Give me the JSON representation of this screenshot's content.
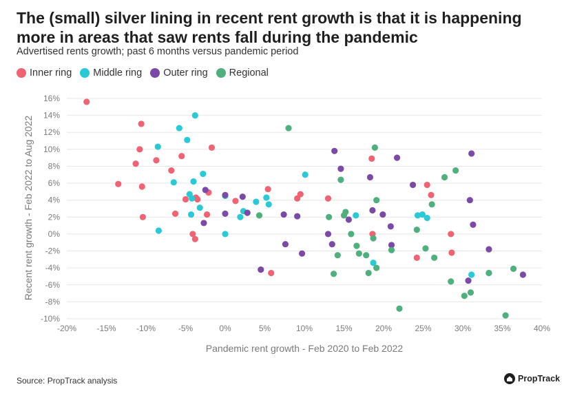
{
  "header": {
    "title": "The (small) silver lining in recent rent growth is that it is happening more in areas that saw rents fall during the pandemic",
    "subtitle": "Advertised rents growth; past 6 months versus pandemic period"
  },
  "footer": {
    "source": "Source: PropTrack analysis",
    "brand": "PropTrack"
  },
  "colors": {
    "grid": "#e6e6e6",
    "axis_text": "#7a7a7a"
  },
  "chart_data": {
    "type": "scatter",
    "xlabel": "Pandemic rent growth - Feb 2020 to Feb 2022",
    "ylabel": "Recent rent growth - Feb 2022 to Aug 2022",
    "xlim": [
      -20,
      40
    ],
    "ylim": [
      -10,
      16
    ],
    "x_ticks": [
      "-20%",
      "-15%",
      "-10%",
      "-5%",
      "0%",
      "5%",
      "10%",
      "15%",
      "20%",
      "25%",
      "30%",
      "35%",
      "40%"
    ],
    "y_ticks": [
      "-10%",
      "-8%",
      "-6%",
      "-4%",
      "-2%",
      "0%",
      "2%",
      "4%",
      "6%",
      "8%",
      "10%",
      "12%",
      "14%",
      "16%"
    ],
    "grid": "horizontal",
    "legend_position": "top-left",
    "series": [
      {
        "name": "Inner ring",
        "color": "#ef6373",
        "points": [
          [
            -17.5,
            15.6
          ],
          [
            -13.5,
            5.9
          ],
          [
            -11.3,
            8.3
          ],
          [
            -10.8,
            10.0
          ],
          [
            -10.6,
            13.0
          ],
          [
            -10.5,
            5.6
          ],
          [
            -10.4,
            2.0
          ],
          [
            -8.7,
            8.7
          ],
          [
            -6.8,
            7.5
          ],
          [
            -6.3,
            2.4
          ],
          [
            -5.5,
            9.2
          ],
          [
            -5.0,
            4.1
          ],
          [
            -4.1,
            0.0
          ],
          [
            -3.8,
            -0.6
          ],
          [
            -3.7,
            4.3
          ],
          [
            -3.5,
            4.1
          ],
          [
            -2.3,
            2.3
          ],
          [
            -2.1,
            4.9
          ],
          [
            -1.7,
            10.2
          ],
          [
            1.3,
            3.9
          ],
          [
            5.4,
            5.3
          ],
          [
            5.8,
            -4.6
          ],
          [
            9.1,
            4.2
          ],
          [
            9.5,
            4.7
          ],
          [
            13.0,
            4.2
          ],
          [
            18.5,
            8.9
          ],
          [
            18.6,
            0.0
          ],
          [
            24.2,
            -2.8
          ],
          [
            25.5,
            5.8
          ],
          [
            26.0,
            4.6
          ],
          [
            28.5,
            0.0
          ],
          [
            28.6,
            -2.2
          ]
        ]
      },
      {
        "name": "Middle ring",
        "color": "#29c9d6",
        "points": [
          [
            -8.5,
            10.3
          ],
          [
            -8.4,
            0.4
          ],
          [
            -6.5,
            6.1
          ],
          [
            -5.8,
            12.5
          ],
          [
            -4.8,
            11.1
          ],
          [
            -4.5,
            4.7
          ],
          [
            -4.3,
            2.3
          ],
          [
            -4.2,
            4.2
          ],
          [
            -4.0,
            6.2
          ],
          [
            -3.8,
            14.0
          ],
          [
            -3.2,
            3.1
          ],
          [
            -2.8,
            7.1
          ],
          [
            0.0,
            4.5
          ],
          [
            0.0,
            0.0
          ],
          [
            1.9,
            2.0
          ],
          [
            2.3,
            2.7
          ],
          [
            3.9,
            3.8
          ],
          [
            5.2,
            4.3
          ],
          [
            5.5,
            3.5
          ],
          [
            10.1,
            7.0
          ],
          [
            16.5,
            2.2
          ],
          [
            18.7,
            -3.4
          ],
          [
            24.3,
            2.2
          ],
          [
            24.9,
            2.3
          ],
          [
            25.5,
            1.9
          ],
          [
            31.1,
            -4.8
          ],
          [
            33.3,
            -4.6
          ]
        ]
      },
      {
        "name": "Outer ring",
        "color": "#7a4aa6",
        "points": [
          [
            -2.5,
            5.2
          ],
          [
            -2.7,
            1.3
          ],
          [
            0.0,
            4.6
          ],
          [
            0.0,
            2.4
          ],
          [
            2.2,
            4.4
          ],
          [
            2.8,
            2.5
          ],
          [
            4.5,
            -4.2
          ],
          [
            7.4,
            2.3
          ],
          [
            7.6,
            -1.2
          ],
          [
            9.1,
            2.1
          ],
          [
            9.7,
            -2.3
          ],
          [
            13.0,
            0.0
          ],
          [
            13.5,
            -1.2
          ],
          [
            13.8,
            9.8
          ],
          [
            14.6,
            7.7
          ],
          [
            15.6,
            1.7
          ],
          [
            18.3,
            6.7
          ],
          [
            18.6,
            2.8
          ],
          [
            19.9,
            2.3
          ],
          [
            20.9,
            0.9
          ],
          [
            21.0,
            -1.3
          ],
          [
            21.7,
            9.0
          ],
          [
            23.7,
            5.8
          ],
          [
            30.7,
            -5.5
          ],
          [
            30.9,
            4.0
          ],
          [
            31.1,
            9.5
          ],
          [
            31.3,
            1.1
          ],
          [
            33.3,
            -1.8
          ],
          [
            37.6,
            -4.8
          ]
        ]
      },
      {
        "name": "Regional",
        "color": "#4faf7d",
        "points": [
          [
            4.3,
            2.2
          ],
          [
            8.0,
            12.5
          ],
          [
            13.1,
            2.0
          ],
          [
            13.7,
            -4.7
          ],
          [
            14.2,
            -2.5
          ],
          [
            14.6,
            6.4
          ],
          [
            15.0,
            2.2
          ],
          [
            15.2,
            2.6
          ],
          [
            15.9,
            0.0
          ],
          [
            16.6,
            -1.4
          ],
          [
            16.9,
            -2.3
          ],
          [
            17.8,
            -2.5
          ],
          [
            18.1,
            -4.6
          ],
          [
            18.7,
            -0.5
          ],
          [
            18.9,
            10.2
          ],
          [
            19.1,
            4.0
          ],
          [
            19.1,
            -4.0
          ],
          [
            21.0,
            -1.9
          ],
          [
            22.0,
            -8.8
          ],
          [
            24.2,
            0.5
          ],
          [
            25.3,
            -1.7
          ],
          [
            26.1,
            3.5
          ],
          [
            26.4,
            -2.8
          ],
          [
            27.7,
            6.7
          ],
          [
            28.5,
            -5.6
          ],
          [
            29.1,
            7.5
          ],
          [
            30.2,
            -7.3
          ],
          [
            31.0,
            -6.9
          ],
          [
            33.3,
            -4.6
          ],
          [
            35.4,
            -9.6
          ],
          [
            36.4,
            -4.1
          ]
        ]
      }
    ]
  }
}
